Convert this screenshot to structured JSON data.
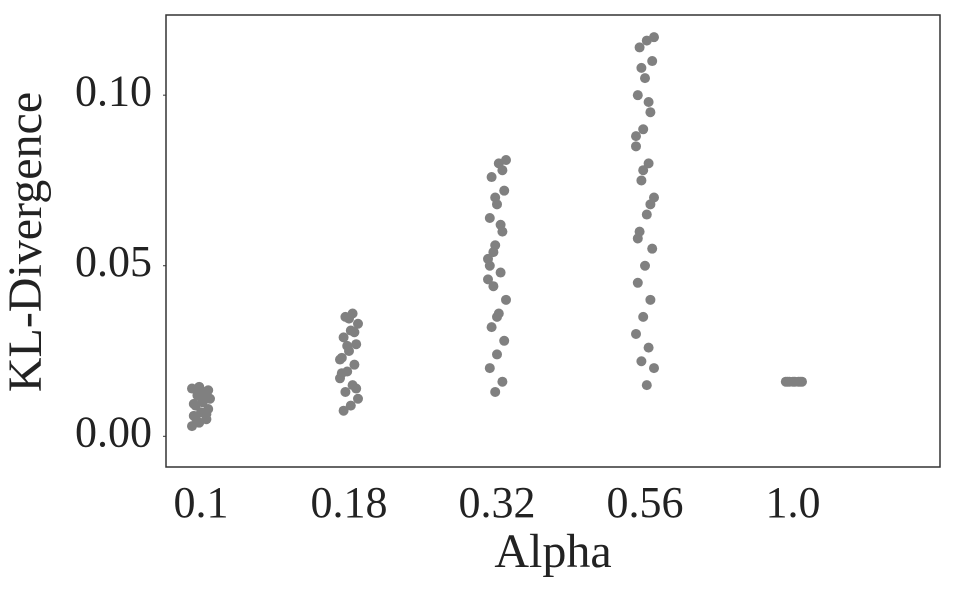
{
  "chart_data": {
    "type": "strip",
    "xlabel": "Alpha",
    "ylabel": "KL-Divergence",
    "categories": [
      "0.1",
      "0.18",
      "0.32",
      "0.56",
      "1.0"
    ],
    "values": [
      [
        0.003,
        0.004,
        0.005,
        0.006,
        0.007,
        0.008,
        0.009,
        0.01,
        0.011,
        0.012,
        0.013,
        0.014,
        0.0145,
        0.0065,
        0.0095,
        0.0115,
        0.0135,
        0.0055
      ],
      [
        0.0075,
        0.009,
        0.011,
        0.013,
        0.015,
        0.017,
        0.019,
        0.021,
        0.023,
        0.025,
        0.027,
        0.029,
        0.031,
        0.033,
        0.035,
        0.036,
        0.0225,
        0.0265,
        0.0305,
        0.0185,
        0.0345,
        0.014
      ],
      [
        0.013,
        0.016,
        0.02,
        0.024,
        0.028,
        0.032,
        0.036,
        0.04,
        0.044,
        0.048,
        0.052,
        0.056,
        0.06,
        0.064,
        0.068,
        0.072,
        0.076,
        0.08,
        0.081,
        0.054,
        0.062,
        0.046,
        0.07,
        0.078,
        0.05,
        0.035
      ],
      [
        0.015,
        0.02,
        0.022,
        0.026,
        0.03,
        0.035,
        0.04,
        0.045,
        0.05,
        0.055,
        0.06,
        0.065,
        0.07,
        0.075,
        0.08,
        0.085,
        0.09,
        0.095,
        0.1,
        0.105,
        0.11,
        0.114,
        0.116,
        0.117,
        0.108,
        0.098,
        0.088,
        0.078,
        0.068,
        0.058
      ],
      [
        0.016,
        0.016,
        0.016,
        0.016,
        0.016,
        0.016,
        0.016,
        0.016
      ]
    ],
    "color": "#808080",
    "ylim": [
      -0.009,
      0.1235
    ],
    "yticks": [
      {
        "value": 0,
        "label": "0.00"
      },
      {
        "value": 0.05,
        "label": "0.05"
      },
      {
        "value": 0.1,
        "label": "0.10"
      }
    ]
  }
}
